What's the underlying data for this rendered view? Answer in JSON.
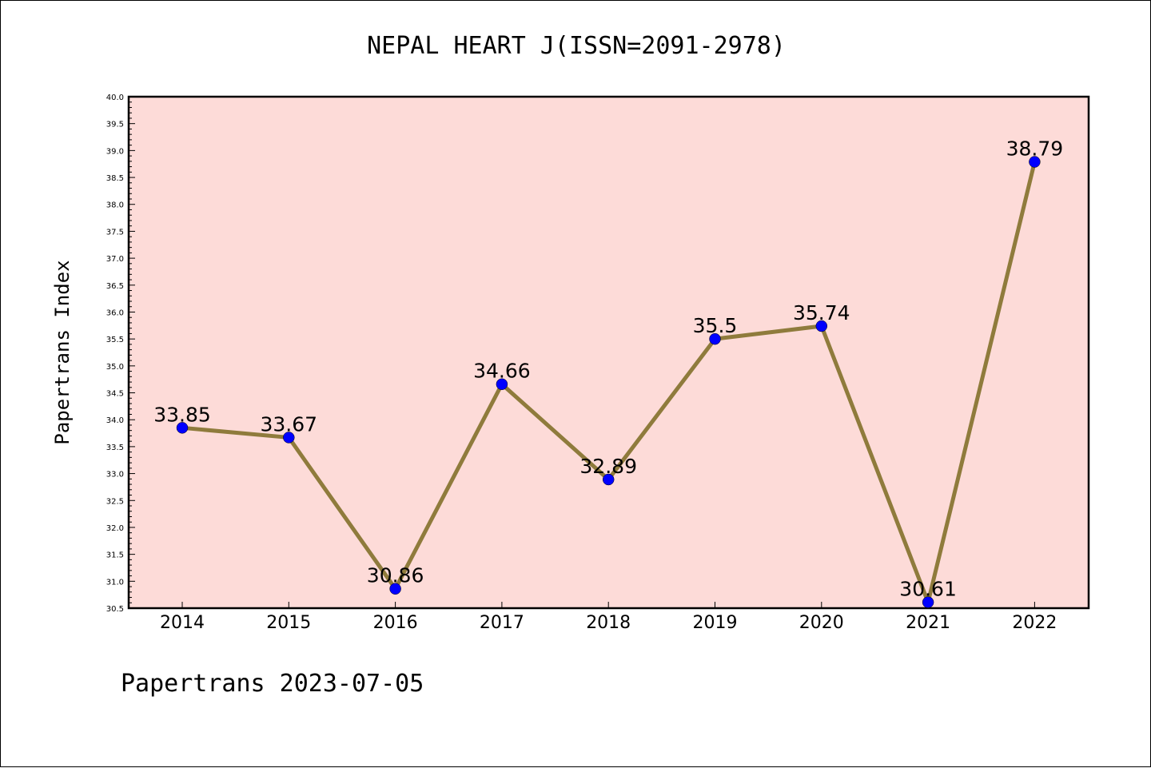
{
  "chart_data": {
    "type": "line",
    "title": "NEPAL HEART J(ISSN=2091-2978)",
    "xlabel": "",
    "ylabel": "Papertrans Index",
    "footer": "Papertrans 2023-07-05",
    "categories": [
      "2014",
      "2015",
      "2016",
      "2017",
      "2018",
      "2019",
      "2020",
      "2021",
      "2022"
    ],
    "series": [
      {
        "values": [
          33.85,
          33.67,
          30.86,
          34.66,
          32.89,
          35.5,
          35.74,
          30.61,
          38.79
        ],
        "labels": [
          "33.85",
          "33.67",
          "30.86",
          "34.66",
          "32.89",
          "35.5",
          "35.74",
          "30.61",
          "38.79"
        ]
      }
    ],
    "ylim": [
      30.5,
      40.0
    ],
    "yticks": [
      "30.5",
      "31.0",
      "31.5",
      "32.0",
      "32.5",
      "33.0",
      "33.5",
      "34.0",
      "34.5",
      "35.0",
      "35.5",
      "36.0",
      "36.5",
      "37.0",
      "37.5",
      "38.0",
      "38.5",
      "39.0",
      "39.5",
      "40.0"
    ],
    "grid": false,
    "colors": {
      "plot_background": "#fddbd8",
      "line": "#8f7b3c",
      "marker": "#0000ff"
    }
  }
}
